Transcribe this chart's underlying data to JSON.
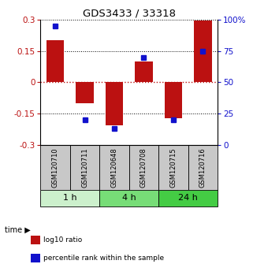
{
  "title": "GDS3433 / 33318",
  "categories": [
    "GSM120710",
    "GSM120711",
    "GSM120648",
    "GSM120708",
    "GSM120715",
    "GSM120716"
  ],
  "log10_ratio": [
    0.2,
    -0.1,
    -0.205,
    0.1,
    -0.17,
    0.295
  ],
  "percentile_rank": [
    95,
    20,
    13,
    70,
    20,
    75
  ],
  "bar_color": "#bb1111",
  "dot_color": "#1111cc",
  "ylim": [
    -0.3,
    0.3
  ],
  "yticks": [
    -0.3,
    -0.15,
    0,
    0.15,
    0.3
  ],
  "ytick_labels": [
    "-0.3",
    "-0.15",
    "0",
    "0.15",
    "0.3"
  ],
  "ytick_right": [
    0,
    25,
    50,
    75,
    100
  ],
  "ytick_right_labels": [
    "0",
    "25",
    "50",
    "75",
    "100%"
  ],
  "time_groups": [
    {
      "label": "1 h",
      "start": 0,
      "end": 2,
      "color": "#ccf0cc"
    },
    {
      "label": "4 h",
      "start": 2,
      "end": 4,
      "color": "#77dd77"
    },
    {
      "label": "24 h",
      "start": 4,
      "end": 6,
      "color": "#44cc44"
    }
  ],
  "label_box_color": "#c8c8c8",
  "background_color": "#ffffff",
  "legend_items": [
    {
      "label": "log10 ratio",
      "color": "#bb1111"
    },
    {
      "label": "percentile rank within the sample",
      "color": "#1111cc"
    }
  ]
}
